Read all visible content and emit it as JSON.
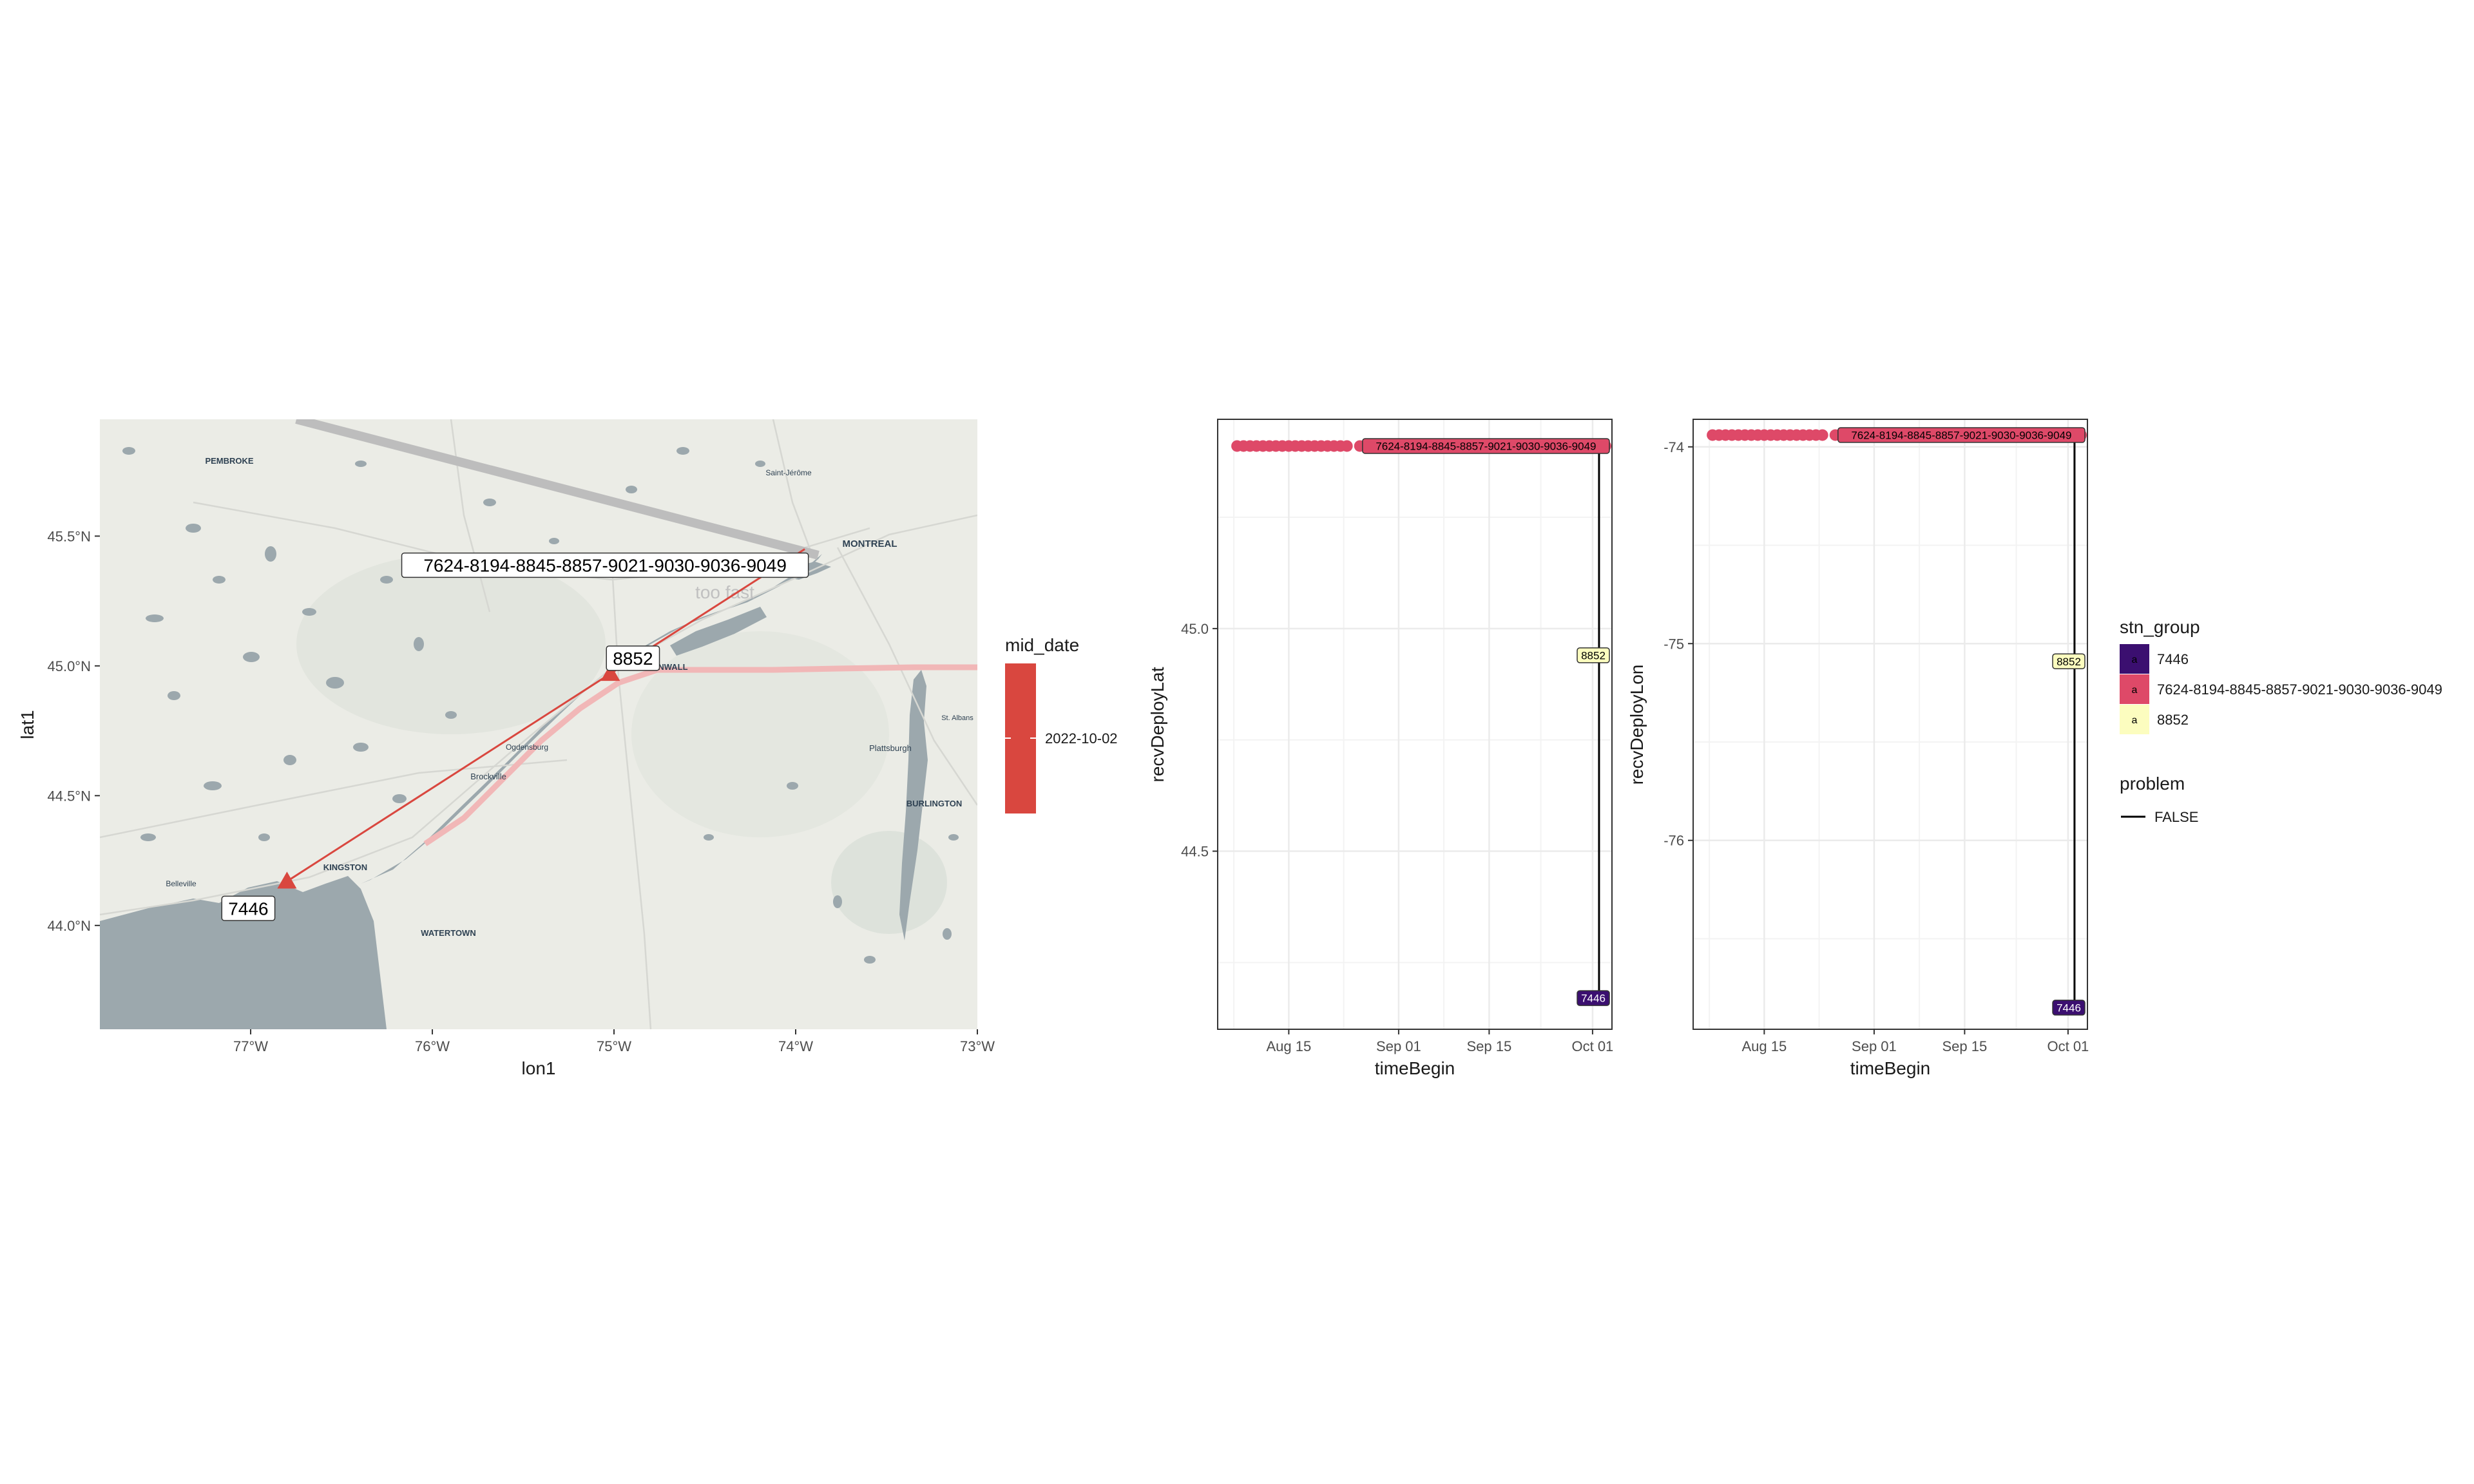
{
  "colors": {
    "group_7446": "#3b0f70",
    "group_long": "#de4968",
    "group_8852": "#fcfdbf",
    "track": "#d9473f",
    "water": "#9ca8ad",
    "land": "#ebece6",
    "highlight": "#f1b7b7",
    "grid": "#ebebeb",
    "panel_border": "#333333"
  },
  "chart_data": [
    {
      "type": "map",
      "xlabel": "lon1",
      "ylabel": "lat1",
      "xlim": [
        -77.83,
        -73.0
      ],
      "ylim": [
        43.6,
        45.95
      ],
      "x_ticks": [
        -77,
        -76,
        -75,
        -74,
        -73
      ],
      "x_tick_labels": [
        "77°W",
        "76°W",
        "75°W",
        "74°W",
        "73°W"
      ],
      "y_ticks": [
        44.0,
        44.5,
        45.0,
        45.5
      ],
      "y_tick_labels": [
        "44.0°N",
        "44.5°N",
        "45.0°N",
        "45.5°N"
      ],
      "stations": [
        {
          "label": "7446",
          "lon": -76.8,
          "lat": 44.17
        },
        {
          "label": "8852",
          "lon": -75.02,
          "lat": 44.97
        },
        {
          "label": "7624-8194-8845-8857-9021-9030-9036-9049",
          "lon": -73.95,
          "lat": 45.45
        }
      ],
      "annotation": "too fast",
      "place_names": [
        "PEMBROKE",
        "Saint-Jérôme",
        "MONTREAL",
        "CORNWALL",
        "Ogdensburg",
        "Brockville",
        "Plattsburgh",
        "St. Albans",
        "BURLINGTON",
        "Belleville",
        "KINGSTON",
        "WATERTOWN"
      ],
      "legend": {
        "title": "mid_date",
        "tick_label": "2022-10-02"
      }
    },
    {
      "type": "scatter",
      "xlabel": "timeBegin",
      "ylabel": "recvDeployLat",
      "xlim": [
        "2022-08-04",
        "2022-10-04"
      ],
      "ylim": [
        44.1,
        45.47
      ],
      "x_ticks": [
        "2022-08-15",
        "2022-09-01",
        "2022-09-15",
        "2022-10-01"
      ],
      "x_tick_labels": [
        "Aug 15",
        "Sep 01",
        "Sep 15",
        "Oct 01"
      ],
      "y_ticks": [
        44.5,
        45.0
      ],
      "y_tick_labels": [
        "44.5",
        "45.0"
      ],
      "series": [
        {
          "name": "7624-8194-8845-8857-9021-9030-9036-9049",
          "y": 45.41,
          "x": [
            "2022-08-07",
            "2022-08-08",
            "2022-08-09",
            "2022-08-10",
            "2022-08-11",
            "2022-08-12",
            "2022-08-13",
            "2022-08-14",
            "2022-08-15",
            "2022-08-16",
            "2022-08-17",
            "2022-08-18",
            "2022-08-19",
            "2022-08-20",
            "2022-08-21",
            "2022-08-22",
            "2022-08-23",
            "2022-08-24",
            "2022-08-26",
            "2022-08-27",
            "2022-08-28",
            "2022-08-29",
            "2022-08-30",
            "2022-08-31",
            "2022-09-01",
            "2022-09-03",
            "2022-09-05",
            "2022-09-08",
            "2022-09-11",
            "2022-09-14",
            "2022-09-17",
            "2022-09-20",
            "2022-09-23",
            "2022-09-26",
            "2022-09-29",
            "2022-10-01",
            "2022-10-03"
          ]
        },
        {
          "name": "8852",
          "x": [
            "2022-10-04"
          ],
          "y": [
            44.94
          ]
        },
        {
          "name": "7446",
          "x": [
            "2022-10-02"
          ],
          "y": [
            44.17
          ]
        }
      ],
      "segments": [
        {
          "x": "2022-10-02",
          "y_from": 45.41,
          "y_to": 44.17,
          "problem": "FALSE"
        }
      ],
      "point_labels": [
        "7624-8194-8845-8857-9021-9030-9036-9049",
        "8852",
        "7446"
      ]
    },
    {
      "type": "scatter",
      "xlabel": "timeBegin",
      "ylabel": "recvDeployLon",
      "xlim": [
        "2022-08-04",
        "2022-10-04"
      ],
      "ylim": [
        -76.96,
        -73.86
      ],
      "x_ticks": [
        "2022-08-15",
        "2022-09-01",
        "2022-09-15",
        "2022-10-01"
      ],
      "x_tick_labels": [
        "Aug 15",
        "Sep 01",
        "Sep 15",
        "Oct 01"
      ],
      "y_ticks": [
        -76,
        -75,
        -74
      ],
      "y_tick_labels": [
        "-76",
        "-75",
        "-74"
      ],
      "series": [
        {
          "name": "7624-8194-8845-8857-9021-9030-9036-9049",
          "y": -73.94,
          "x": [
            "2022-08-07",
            "2022-08-08",
            "2022-08-09",
            "2022-08-10",
            "2022-08-11",
            "2022-08-12",
            "2022-08-13",
            "2022-08-14",
            "2022-08-15",
            "2022-08-16",
            "2022-08-17",
            "2022-08-18",
            "2022-08-19",
            "2022-08-20",
            "2022-08-21",
            "2022-08-22",
            "2022-08-23",
            "2022-08-24",
            "2022-08-26",
            "2022-08-27",
            "2022-08-28",
            "2022-08-29",
            "2022-08-30",
            "2022-08-31",
            "2022-09-01",
            "2022-09-03",
            "2022-09-05",
            "2022-09-08",
            "2022-09-11",
            "2022-09-14",
            "2022-09-17",
            "2022-09-20",
            "2022-09-23",
            "2022-09-26",
            "2022-09-29",
            "2022-10-01",
            "2022-10-03"
          ]
        },
        {
          "name": "8852",
          "x": [
            "2022-10-04"
          ],
          "y": [
            -75.09
          ]
        },
        {
          "name": "7446",
          "x": [
            "2022-10-02"
          ],
          "y": [
            -76.85
          ]
        }
      ],
      "segments": [
        {
          "x": "2022-10-02",
          "y_from": -73.94,
          "y_to": -76.85,
          "problem": "FALSE"
        }
      ],
      "point_labels": [
        "7624-8194-8845-8857-9021-9030-9036-9049",
        "8852",
        "7446"
      ]
    }
  ],
  "legend": {
    "stn_group": {
      "title": "stn_group",
      "glyph": "a",
      "items": [
        "7446",
        "7624-8194-8845-8857-9021-9030-9036-9049",
        "8852"
      ]
    },
    "problem": {
      "title": "problem",
      "items": [
        "FALSE"
      ]
    }
  }
}
